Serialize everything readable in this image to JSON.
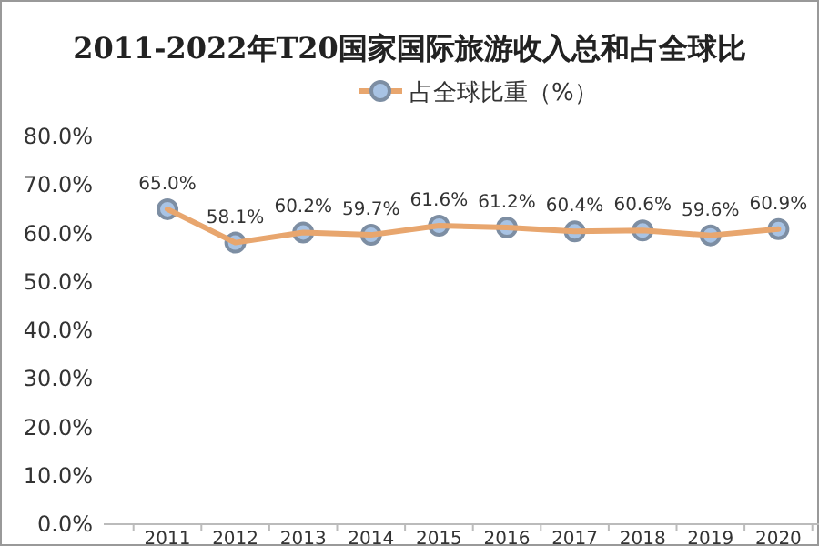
{
  "chart_data": {
    "type": "line",
    "title": "2011-2022年T20国家国际旅游收入总和占全球比",
    "categories": [
      "2011",
      "2012",
      "2013",
      "2014",
      "2015",
      "2016",
      "2017",
      "2018",
      "2019",
      "2020"
    ],
    "series": [
      {
        "name": "占全球比重（%）",
        "color": "#e8a66e",
        "values": [
          65.0,
          58.1,
          60.2,
          59.7,
          61.6,
          61.2,
          60.4,
          60.6,
          59.6,
          60.9
        ],
        "value_labels": [
          "65.0%",
          "58.1%",
          "60.2%",
          "59.7%",
          "61.6%",
          "61.2%",
          "60.4%",
          "60.6%",
          "59.6%",
          "60.9%"
        ]
      }
    ],
    "ylim": [
      0,
      80
    ],
    "yticks": [
      {
        "value": 0,
        "label": "0.0%"
      },
      {
        "value": 10,
        "label": "10.0%"
      },
      {
        "value": 20,
        "label": "20.0%"
      },
      {
        "value": 30,
        "label": "30.0%"
      },
      {
        "value": 40,
        "label": "40.0%"
      },
      {
        "value": 50,
        "label": "50.0%"
      },
      {
        "value": 60,
        "label": "60.0%"
      },
      {
        "value": 70,
        "label": "70.0%"
      },
      {
        "value": 80,
        "label": "80.0%"
      }
    ],
    "legend": "top",
    "marker": "circle",
    "line_style": "solid"
  }
}
